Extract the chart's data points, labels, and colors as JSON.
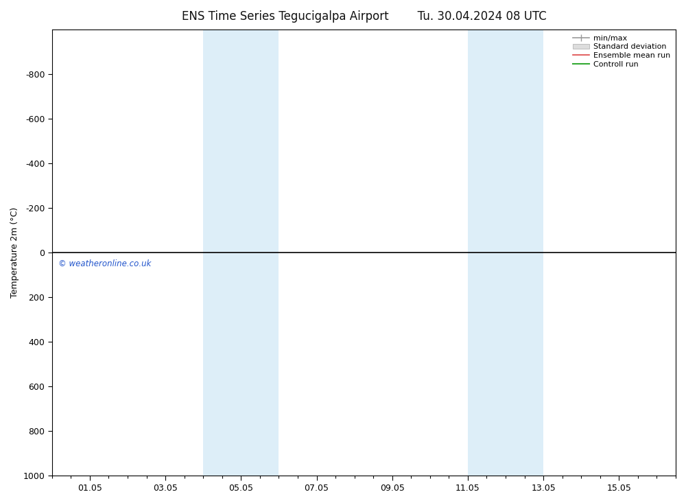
{
  "title": "ENS Time Series Tegucigalpa Airport",
  "title2": "Tu. 30.04.2024 08 UTC",
  "ylabel": "Temperature 2m (°C)",
  "ylim_top": -1000,
  "ylim_bottom": 1000,
  "yticks": [
    -800,
    -600,
    -400,
    -200,
    0,
    200,
    400,
    600,
    800,
    1000
  ],
  "xtick_labels": [
    "01.05",
    "03.05",
    "05.05",
    "07.05",
    "09.05",
    "11.05",
    "13.05",
    "15.05"
  ],
  "xtick_positions": [
    1,
    3,
    5,
    7,
    9,
    11,
    13,
    15
  ],
  "xlim": [
    0,
    16.5
  ],
  "shade_bands": [
    {
      "x_start": 4.0,
      "x_end": 6.0
    },
    {
      "x_start": 11.0,
      "x_end": 13.0
    }
  ],
  "shade_color": "#ddeef8",
  "background_color": "#ffffff",
  "plot_bg_color": "#ffffff",
  "zero_line_color": "#000000",
  "legend_items": [
    {
      "label": "min/max",
      "color": "#999999",
      "lw": 1.2
    },
    {
      "label": "Standard deviation",
      "color": "#dddddd",
      "lw": 8
    },
    {
      "label": "Ensemble mean run",
      "color": "#dd4444",
      "lw": 1.2
    },
    {
      "label": "Controll run",
      "color": "#33aa33",
      "lw": 1.5
    }
  ],
  "copyright_text": "© weatheronline.co.uk",
  "copyright_color": "#2255cc",
  "title_fontsize": 12,
  "axis_label_fontsize": 9,
  "tick_fontsize": 9,
  "legend_fontsize": 8
}
